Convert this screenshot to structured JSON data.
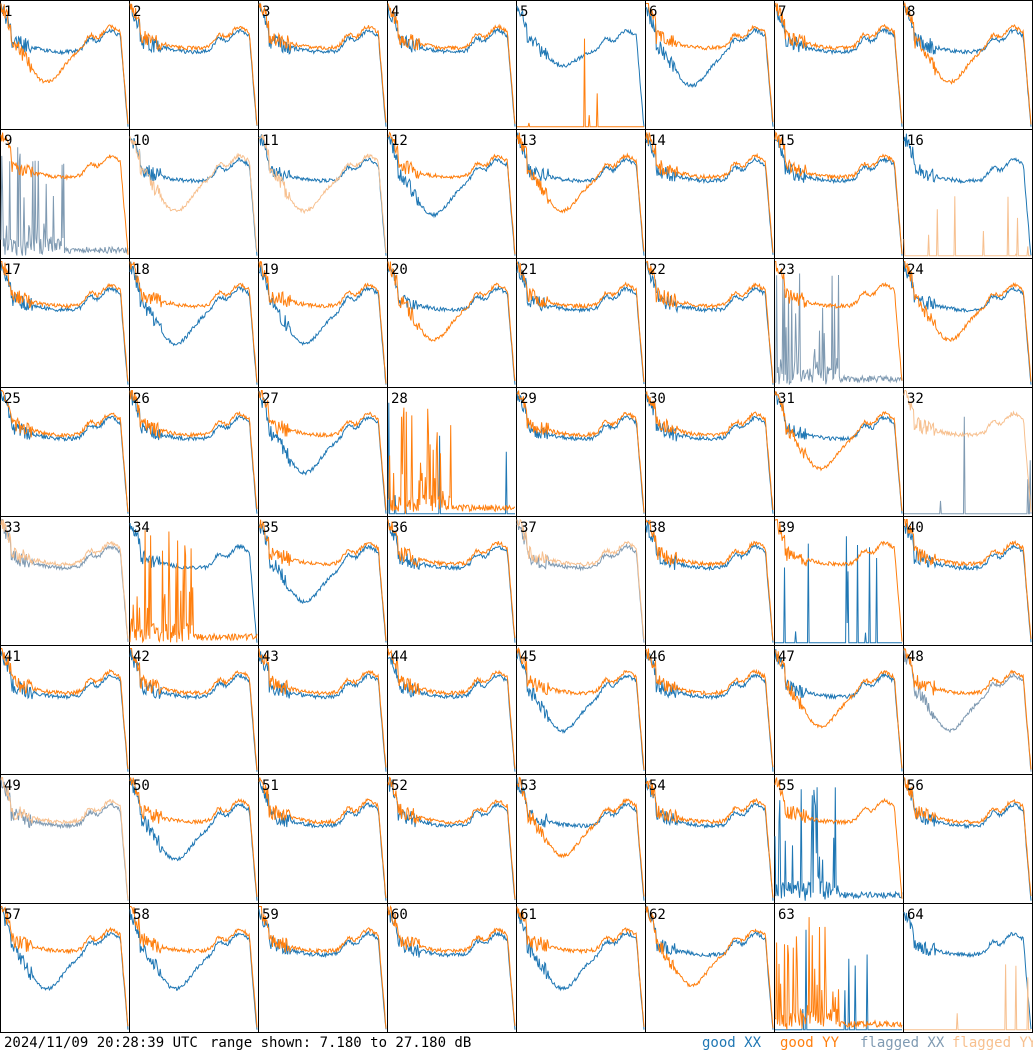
{
  "footer": {
    "timestamp": "2024/11/09 20:28:39 UTC",
    "range_text": "range shown: 7.180 to 27.180 dB"
  },
  "legend": [
    {
      "label": "good XX",
      "color": "#1f77b4"
    },
    {
      "label": "good YY",
      "color": "#ff7f0e"
    },
    {
      "label": "flagged XX",
      "color": "#7f9ab2"
    },
    {
      "label": "flagged YY",
      "color": "#f7c08f"
    }
  ],
  "chart_data": {
    "type": "line",
    "grid": "8x8 small multiples",
    "y_range_db": [
      7.18,
      27.18
    ],
    "panels": [
      {
        "id": "1",
        "xx": "good",
        "yy": "good",
        "xx_shape": "normal",
        "yy_shape": "dip"
      },
      {
        "id": "2",
        "xx": "good",
        "yy": "good",
        "xx_shape": "normal",
        "yy_shape": "normal"
      },
      {
        "id": "3",
        "xx": "good",
        "yy": "good",
        "xx_shape": "normal",
        "yy_shape": "normal"
      },
      {
        "id": "4",
        "xx": "good",
        "yy": "good",
        "xx_shape": "normal",
        "yy_shape": "normal"
      },
      {
        "id": "5",
        "xx": "good",
        "yy": "good",
        "xx_shape": "normal_low",
        "yy_shape": "dead"
      },
      {
        "id": "6",
        "xx": "good",
        "yy": "good",
        "xx_shape": "dip",
        "yy_shape": "normal"
      },
      {
        "id": "7",
        "xx": "good",
        "yy": "good",
        "xx_shape": "normal",
        "yy_shape": "normal"
      },
      {
        "id": "8",
        "xx": "good",
        "yy": "good",
        "xx_shape": "normal",
        "yy_shape": "dip"
      },
      {
        "id": "9",
        "xx": "flagged",
        "yy": "good",
        "xx_shape": "spiky",
        "yy_shape": "normal"
      },
      {
        "id": "10",
        "xx": "good",
        "yy": "flagged",
        "xx_shape": "normal",
        "yy_shape": "dip"
      },
      {
        "id": "11",
        "xx": "good",
        "yy": "flagged",
        "xx_shape": "normal",
        "yy_shape": "dip"
      },
      {
        "id": "12",
        "xx": "good",
        "yy": "good",
        "xx_shape": "dip",
        "yy_shape": "normal"
      },
      {
        "id": "13",
        "xx": "good",
        "yy": "good",
        "xx_shape": "normal",
        "yy_shape": "dip"
      },
      {
        "id": "14",
        "xx": "good",
        "yy": "good",
        "xx_shape": "normal",
        "yy_shape": "normal"
      },
      {
        "id": "15",
        "xx": "good",
        "yy": "good",
        "xx_shape": "normal",
        "yy_shape": "normal"
      },
      {
        "id": "16",
        "xx": "good",
        "yy": "flagged",
        "xx_shape": "normal",
        "yy_shape": "dead"
      },
      {
        "id": "17",
        "xx": "good",
        "yy": "good",
        "xx_shape": "normal",
        "yy_shape": "normal"
      },
      {
        "id": "18",
        "xx": "good",
        "yy": "good",
        "xx_shape": "dip",
        "yy_shape": "normal"
      },
      {
        "id": "19",
        "xx": "good",
        "yy": "good",
        "xx_shape": "dip",
        "yy_shape": "normal"
      },
      {
        "id": "20",
        "xx": "good",
        "yy": "good",
        "xx_shape": "normal",
        "yy_shape": "dip"
      },
      {
        "id": "21",
        "xx": "good",
        "yy": "good",
        "xx_shape": "normal",
        "yy_shape": "normal"
      },
      {
        "id": "22",
        "xx": "good",
        "yy": "good",
        "xx_shape": "normal",
        "yy_shape": "normal"
      },
      {
        "id": "23",
        "xx": "flagged",
        "yy": "good",
        "xx_shape": "spiky",
        "yy_shape": "normal"
      },
      {
        "id": "24",
        "xx": "good",
        "yy": "good",
        "xx_shape": "normal",
        "yy_shape": "dip"
      },
      {
        "id": "25",
        "xx": "good",
        "yy": "good",
        "xx_shape": "normal",
        "yy_shape": "normal"
      },
      {
        "id": "26",
        "xx": "good",
        "yy": "good",
        "xx_shape": "normal",
        "yy_shape": "normal"
      },
      {
        "id": "27",
        "xx": "good",
        "yy": "good",
        "xx_shape": "dip",
        "yy_shape": "normal"
      },
      {
        "id": "28",
        "xx": "good",
        "yy": "good",
        "xx_shape": "dead",
        "yy_shape": "spiky"
      },
      {
        "id": "29",
        "xx": "good",
        "yy": "good",
        "xx_shape": "normal",
        "yy_shape": "normal"
      },
      {
        "id": "30",
        "xx": "good",
        "yy": "good",
        "xx_shape": "normal",
        "yy_shape": "normal"
      },
      {
        "id": "31",
        "xx": "good",
        "yy": "good",
        "xx_shape": "normal",
        "yy_shape": "dip"
      },
      {
        "id": "32",
        "xx": "flagged",
        "yy": "flagged",
        "xx_shape": "dead",
        "yy_shape": "normal"
      },
      {
        "id": "33",
        "xx": "flagged",
        "yy": "flagged",
        "xx_shape": "normal",
        "yy_shape": "normal"
      },
      {
        "id": "34",
        "xx": "good",
        "yy": "good",
        "xx_shape": "normal",
        "yy_shape": "spiky"
      },
      {
        "id": "35",
        "xx": "good",
        "yy": "good",
        "xx_shape": "dip",
        "yy_shape": "normal"
      },
      {
        "id": "36",
        "xx": "good",
        "yy": "good",
        "xx_shape": "normal",
        "yy_shape": "normal"
      },
      {
        "id": "37",
        "xx": "flagged",
        "yy": "flagged",
        "xx_shape": "normal",
        "yy_shape": "normal"
      },
      {
        "id": "38",
        "xx": "good",
        "yy": "good",
        "xx_shape": "normal",
        "yy_shape": "normal"
      },
      {
        "id": "39",
        "xx": "good",
        "yy": "good",
        "xx_shape": "dead",
        "yy_shape": "normal"
      },
      {
        "id": "40",
        "xx": "good",
        "yy": "good",
        "xx_shape": "normal",
        "yy_shape": "normal"
      },
      {
        "id": "41",
        "xx": "good",
        "yy": "good",
        "xx_shape": "normal",
        "yy_shape": "normal"
      },
      {
        "id": "42",
        "xx": "good",
        "yy": "good",
        "xx_shape": "normal",
        "yy_shape": "normal"
      },
      {
        "id": "43",
        "xx": "good",
        "yy": "good",
        "xx_shape": "normal",
        "yy_shape": "normal"
      },
      {
        "id": "44",
        "xx": "good",
        "yy": "good",
        "xx_shape": "normal",
        "yy_shape": "normal"
      },
      {
        "id": "45",
        "xx": "good",
        "yy": "good",
        "xx_shape": "dip",
        "yy_shape": "normal"
      },
      {
        "id": "46",
        "xx": "good",
        "yy": "good",
        "xx_shape": "normal",
        "yy_shape": "normal"
      },
      {
        "id": "47",
        "xx": "good",
        "yy": "good",
        "xx_shape": "normal",
        "yy_shape": "dip"
      },
      {
        "id": "48",
        "xx": "flagged",
        "yy": "good",
        "xx_shape": "dip",
        "yy_shape": "normal"
      },
      {
        "id": "49",
        "xx": "flagged",
        "yy": "flagged",
        "xx_shape": "normal",
        "yy_shape": "normal"
      },
      {
        "id": "50",
        "xx": "good",
        "yy": "good",
        "xx_shape": "dip",
        "yy_shape": "normal"
      },
      {
        "id": "51",
        "xx": "good",
        "yy": "good",
        "xx_shape": "normal",
        "yy_shape": "normal"
      },
      {
        "id": "52",
        "xx": "good",
        "yy": "good",
        "xx_shape": "normal",
        "yy_shape": "normal"
      },
      {
        "id": "53",
        "xx": "good",
        "yy": "good",
        "xx_shape": "normal",
        "yy_shape": "dip"
      },
      {
        "id": "54",
        "xx": "good",
        "yy": "good",
        "xx_shape": "normal",
        "yy_shape": "normal"
      },
      {
        "id": "55",
        "xx": "good",
        "yy": "good",
        "xx_shape": "spiky",
        "yy_shape": "normal"
      },
      {
        "id": "56",
        "xx": "good",
        "yy": "good",
        "xx_shape": "normal",
        "yy_shape": "normal"
      },
      {
        "id": "57",
        "xx": "good",
        "yy": "good",
        "xx_shape": "dip",
        "yy_shape": "normal"
      },
      {
        "id": "58",
        "xx": "good",
        "yy": "good",
        "xx_shape": "dip",
        "yy_shape": "normal"
      },
      {
        "id": "59",
        "xx": "good",
        "yy": "good",
        "xx_shape": "normal",
        "yy_shape": "normal"
      },
      {
        "id": "60",
        "xx": "good",
        "yy": "good",
        "xx_shape": "normal",
        "yy_shape": "normal"
      },
      {
        "id": "61",
        "xx": "good",
        "yy": "good",
        "xx_shape": "dip",
        "yy_shape": "normal"
      },
      {
        "id": "62",
        "xx": "good",
        "yy": "good",
        "xx_shape": "normal",
        "yy_shape": "dip"
      },
      {
        "id": "63",
        "xx": "good",
        "yy": "good",
        "xx_shape": "dead",
        "yy_shape": "spiky"
      },
      {
        "id": "64",
        "xx": "good",
        "yy": "flagged",
        "xx_shape": "normal",
        "yy_shape": "dead"
      }
    ]
  }
}
